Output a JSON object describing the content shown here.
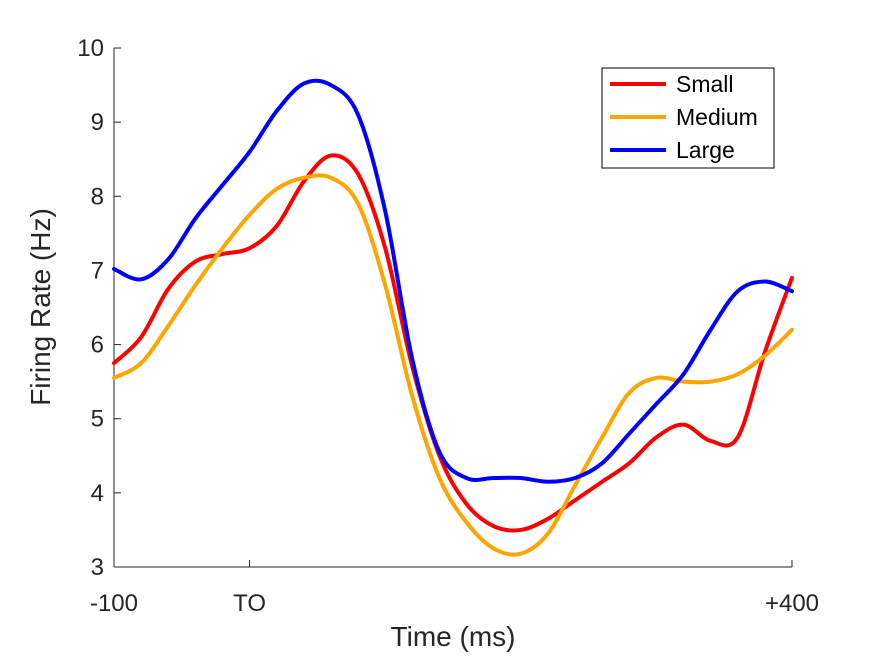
{
  "chart_data": {
    "type": "line",
    "title": "",
    "xlabel": "Time (ms)",
    "ylabel": "Firing Rate (Hz)",
    "xlim": [
      -100,
      400
    ],
    "ylim": [
      3,
      10
    ],
    "x_ticks": [
      {
        "value": -100,
        "label": "-100"
      },
      {
        "value": 0,
        "label": "TO"
      },
      {
        "value": 400,
        "label": "+400"
      }
    ],
    "y_ticks": [
      {
        "value": 3,
        "label": "3"
      },
      {
        "value": 4,
        "label": "4"
      },
      {
        "value": 5,
        "label": "5"
      },
      {
        "value": 6,
        "label": "6"
      },
      {
        "value": 7,
        "label": "7"
      },
      {
        "value": 8,
        "label": "8"
      },
      {
        "value": 9,
        "label": "9"
      },
      {
        "value": 10,
        "label": "10"
      }
    ],
    "legend_position": "top-right",
    "series": [
      {
        "name": "Small",
        "color": "#ff0000",
        "points": [
          [
            -100,
            5.75
          ],
          [
            -80,
            6.1
          ],
          [
            -60,
            6.75
          ],
          [
            -40,
            7.12
          ],
          [
            -20,
            7.22
          ],
          [
            0,
            7.3
          ],
          [
            20,
            7.6
          ],
          [
            40,
            8.2
          ],
          [
            60,
            8.55
          ],
          [
            80,
            8.3
          ],
          [
            100,
            7.3
          ],
          [
            120,
            5.7
          ],
          [
            140,
            4.5
          ],
          [
            160,
            3.85
          ],
          [
            180,
            3.55
          ],
          [
            200,
            3.5
          ],
          [
            220,
            3.65
          ],
          [
            240,
            3.9
          ],
          [
            260,
            4.15
          ],
          [
            280,
            4.4
          ],
          [
            300,
            4.75
          ],
          [
            320,
            4.92
          ],
          [
            340,
            4.7
          ],
          [
            360,
            4.75
          ],
          [
            380,
            5.9
          ],
          [
            400,
            6.9
          ]
        ]
      },
      {
        "name": "Medium",
        "color": "#ffa500",
        "points": [
          [
            -100,
            5.55
          ],
          [
            -80,
            5.75
          ],
          [
            -60,
            6.25
          ],
          [
            -40,
            6.8
          ],
          [
            -20,
            7.3
          ],
          [
            0,
            7.75
          ],
          [
            20,
            8.1
          ],
          [
            40,
            8.25
          ],
          [
            60,
            8.25
          ],
          [
            80,
            7.9
          ],
          [
            100,
            6.8
          ],
          [
            120,
            5.3
          ],
          [
            140,
            4.2
          ],
          [
            160,
            3.6
          ],
          [
            180,
            3.25
          ],
          [
            200,
            3.18
          ],
          [
            220,
            3.45
          ],
          [
            240,
            4.1
          ],
          [
            260,
            4.75
          ],
          [
            280,
            5.35
          ],
          [
            300,
            5.55
          ],
          [
            320,
            5.5
          ],
          [
            340,
            5.5
          ],
          [
            360,
            5.6
          ],
          [
            380,
            5.85
          ],
          [
            400,
            6.2
          ]
        ]
      },
      {
        "name": "Large",
        "color": "#0000ff",
        "points": [
          [
            -100,
            7.02
          ],
          [
            -80,
            6.88
          ],
          [
            -60,
            7.15
          ],
          [
            -40,
            7.7
          ],
          [
            -20,
            8.15
          ],
          [
            0,
            8.6
          ],
          [
            20,
            9.15
          ],
          [
            40,
            9.52
          ],
          [
            60,
            9.5
          ],
          [
            80,
            9.1
          ],
          [
            100,
            7.8
          ],
          [
            120,
            5.8
          ],
          [
            140,
            4.55
          ],
          [
            160,
            4.2
          ],
          [
            180,
            4.2
          ],
          [
            200,
            4.2
          ],
          [
            220,
            4.15
          ],
          [
            240,
            4.2
          ],
          [
            260,
            4.4
          ],
          [
            280,
            4.8
          ],
          [
            300,
            5.2
          ],
          [
            320,
            5.6
          ],
          [
            340,
            6.2
          ],
          [
            360,
            6.72
          ],
          [
            380,
            6.85
          ],
          [
            400,
            6.72
          ]
        ]
      }
    ]
  }
}
